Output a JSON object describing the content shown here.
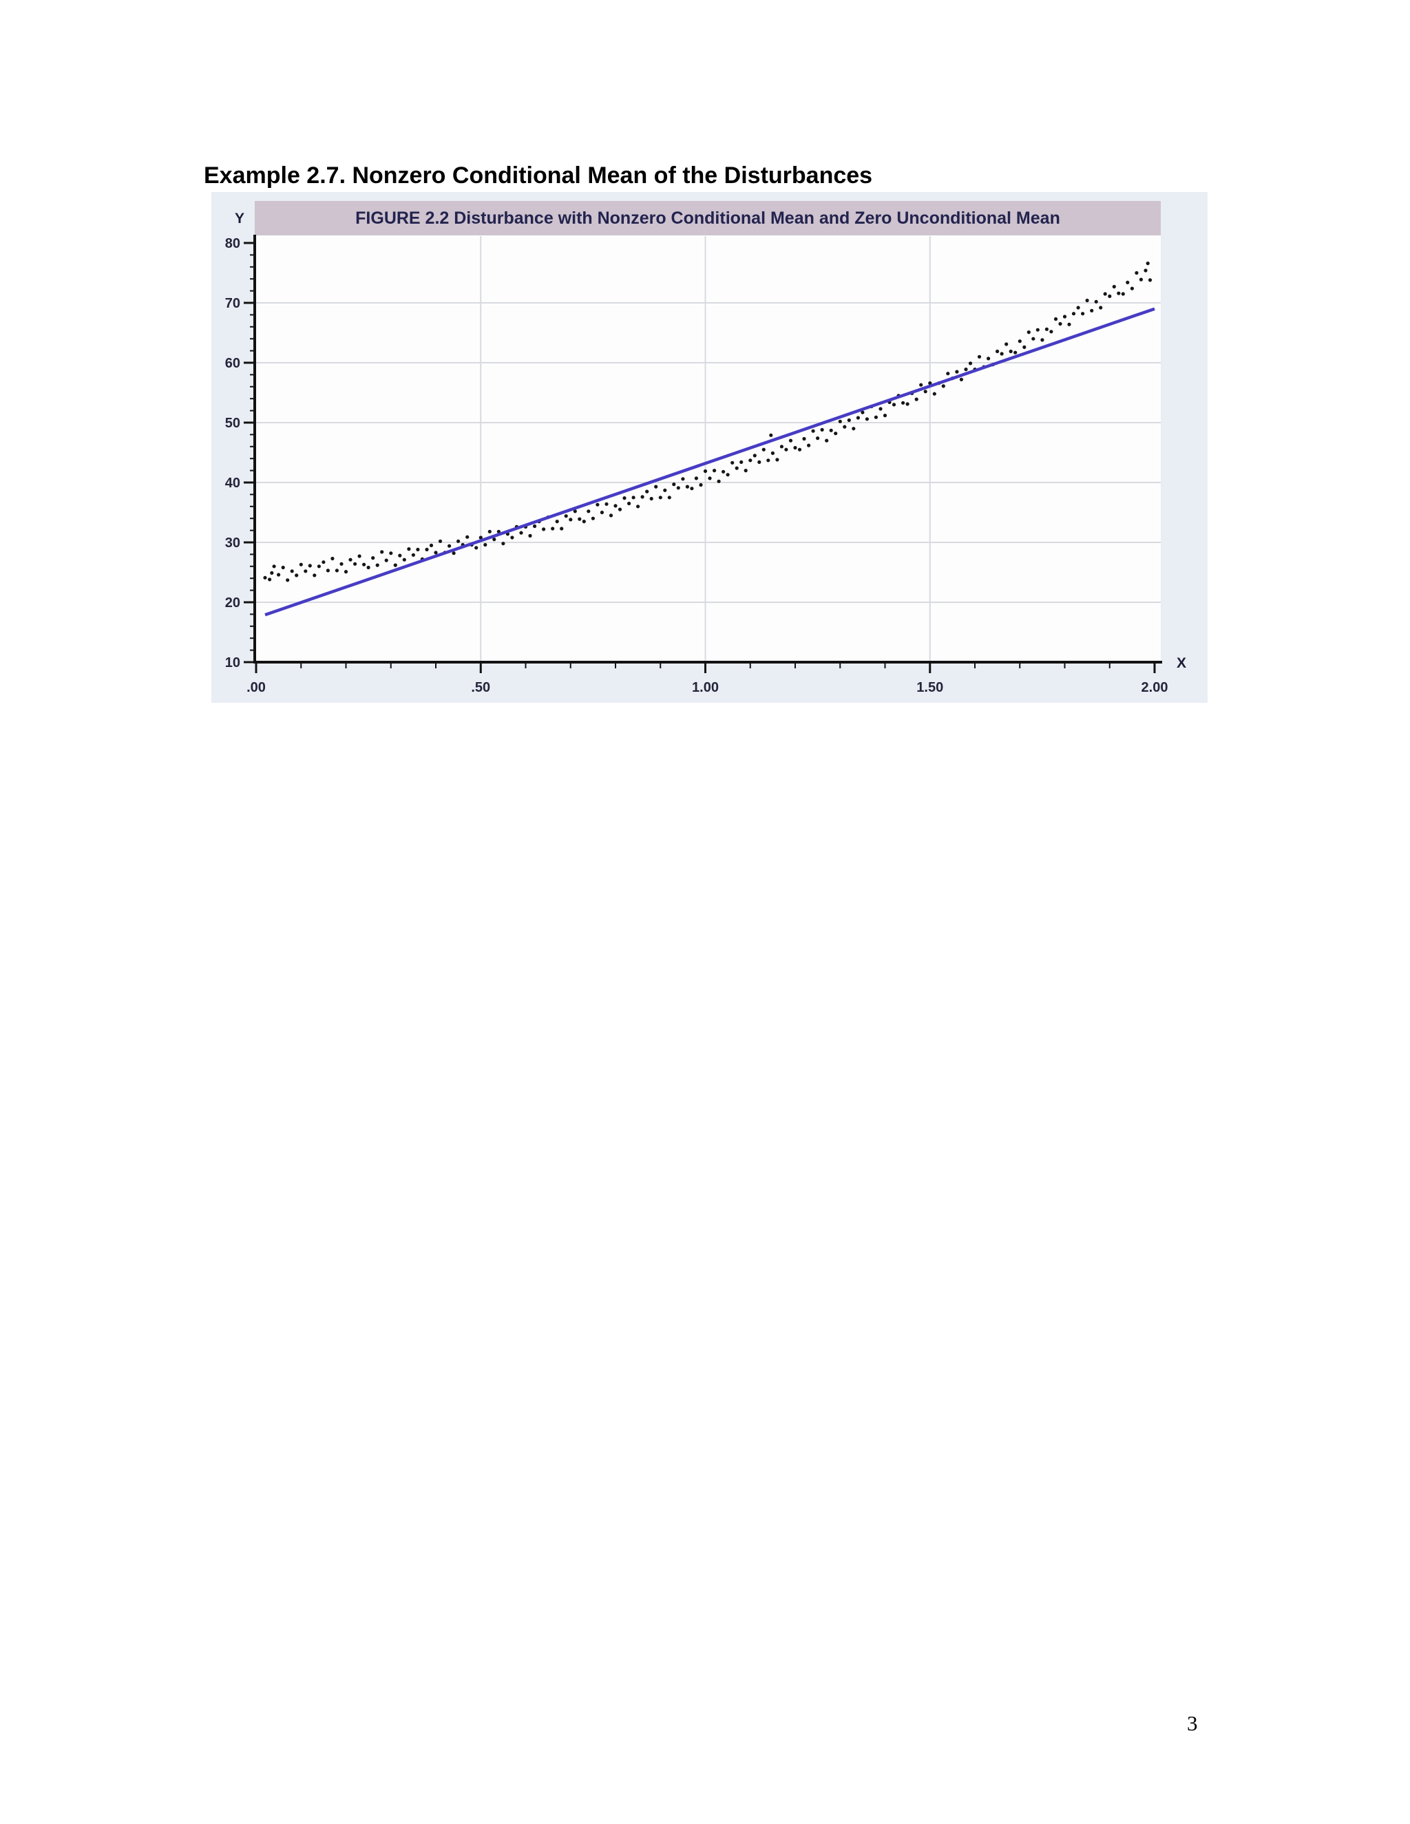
{
  "page": {
    "heading": "Example 2.7. Nonzero Conditional Mean of the Disturbances",
    "page_number": "3"
  },
  "chart_data": {
    "type": "scatter",
    "title": "FIGURE 2.2 Disturbance with Nonzero Conditional Mean and Zero Unconditional Mean",
    "xlabel": "X",
    "ylabel": "Y",
    "xlim": [
      0,
      2.01
    ],
    "ylim": [
      10,
      81
    ],
    "x_tick_values": [
      0,
      0.5,
      1.0,
      1.5,
      2.0
    ],
    "x_tick_labels": [
      ".00",
      ".50",
      "1.00",
      "1.50",
      "2.00"
    ],
    "x_minor_step": 0.1,
    "y_tick_values": [
      10,
      20,
      30,
      40,
      50,
      60,
      70,
      80
    ],
    "y_tick_labels": [
      "10",
      "20",
      "30",
      "40",
      "50",
      "60",
      "70",
      "80"
    ],
    "y_minor_step": 2,
    "grid": true,
    "legend": "none",
    "gridlines": {
      "x": [
        0.5,
        1.0,
        1.5
      ],
      "y": [
        20,
        30,
        40,
        50,
        60,
        70
      ]
    },
    "colors": {
      "figure_bg": "#e9edf4",
      "titlebar_bg": "#cec3ce",
      "title_text": "#23234f",
      "plot_bg": "#fdfdfe",
      "grid": "#d8dae0",
      "axis": "#121212",
      "tick_text": "#24243a",
      "point": "#161616",
      "line": "#473cc4"
    },
    "series": [
      {
        "name": "observations",
        "type": "scatter",
        "color": "#161616",
        "points": [
          [
            0.02,
            24.1
          ],
          [
            0.03,
            23.8
          ],
          [
            0.04,
            26.0
          ],
          [
            0.05,
            24.6
          ],
          [
            0.06,
            25.8
          ],
          [
            0.07,
            23.7
          ],
          [
            0.08,
            25.2
          ],
          [
            0.09,
            24.5
          ],
          [
            0.1,
            26.3
          ],
          [
            0.11,
            25.2
          ],
          [
            0.12,
            26.1
          ],
          [
            0.13,
            24.5
          ],
          [
            0.14,
            26.0
          ],
          [
            0.15,
            26.7
          ],
          [
            0.16,
            25.3
          ],
          [
            0.17,
            27.3
          ],
          [
            0.18,
            25.3
          ],
          [
            0.19,
            26.4
          ],
          [
            0.2,
            25.1
          ],
          [
            0.21,
            27.1
          ],
          [
            0.22,
            26.4
          ],
          [
            0.23,
            27.7
          ],
          [
            0.24,
            26.3
          ],
          [
            0.25,
            25.8
          ],
          [
            0.26,
            27.4
          ],
          [
            0.27,
            26.2
          ],
          [
            0.28,
            28.4
          ],
          [
            0.29,
            27.0
          ],
          [
            0.3,
            28.2
          ],
          [
            0.31,
            26.2
          ],
          [
            0.32,
            27.8
          ],
          [
            0.33,
            27.1
          ],
          [
            0.34,
            28.9
          ],
          [
            0.35,
            27.9
          ],
          [
            0.36,
            28.8
          ],
          [
            0.37,
            27.2
          ],
          [
            0.38,
            28.8
          ],
          [
            0.39,
            29.5
          ],
          [
            0.4,
            28.3
          ],
          [
            0.41,
            30.2
          ],
          [
            0.42,
            28.3
          ],
          [
            0.43,
            29.4
          ],
          [
            0.44,
            28.2
          ],
          [
            0.45,
            30.2
          ],
          [
            0.46,
            29.6
          ],
          [
            0.47,
            30.9
          ],
          [
            0.48,
            29.6
          ],
          [
            0.49,
            29.1
          ],
          [
            0.5,
            30.8
          ],
          [
            0.51,
            29.6
          ],
          [
            0.52,
            31.8
          ],
          [
            0.53,
            30.5
          ],
          [
            0.54,
            31.8
          ],
          [
            0.55,
            29.8
          ],
          [
            0.56,
            31.4
          ],
          [
            0.57,
            30.8
          ],
          [
            0.58,
            32.6
          ],
          [
            0.59,
            31.6
          ],
          [
            0.6,
            32.6
          ],
          [
            0.61,
            31.1
          ],
          [
            0.62,
            32.7
          ],
          [
            0.63,
            33.5
          ],
          [
            0.64,
            32.2
          ],
          [
            0.65,
            34.2
          ],
          [
            0.66,
            32.3
          ],
          [
            0.67,
            33.5
          ],
          [
            0.68,
            32.3
          ],
          [
            0.69,
            34.4
          ],
          [
            0.7,
            33.8
          ],
          [
            0.71,
            35.2
          ],
          [
            0.72,
            33.9
          ],
          [
            0.73,
            33.5
          ],
          [
            0.74,
            35.2
          ],
          [
            0.75,
            34.0
          ],
          [
            0.76,
            36.3
          ],
          [
            0.77,
            35.0
          ],
          [
            0.78,
            36.4
          ],
          [
            0.79,
            34.5
          ],
          [
            0.8,
            36.1
          ],
          [
            0.81,
            35.5
          ],
          [
            0.82,
            37.4
          ],
          [
            0.83,
            36.5
          ],
          [
            0.84,
            37.5
          ],
          [
            0.85,
            36.0
          ],
          [
            0.86,
            37.6
          ],
          [
            0.87,
            38.5
          ],
          [
            0.88,
            37.3
          ],
          [
            0.89,
            39.3
          ],
          [
            0.9,
            37.5
          ],
          [
            0.91,
            38.7
          ],
          [
            0.92,
            37.5
          ],
          [
            0.93,
            39.7
          ],
          [
            0.94,
            39.1
          ],
          [
            0.95,
            40.6
          ],
          [
            0.96,
            39.3
          ],
          [
            0.97,
            39.0
          ],
          [
            0.98,
            40.7
          ],
          [
            0.99,
            39.6
          ],
          [
            1.0,
            41.9
          ],
          [
            1.01,
            40.7
          ],
          [
            1.02,
            42.0
          ],
          [
            1.03,
            40.2
          ],
          [
            1.04,
            41.8
          ],
          [
            1.05,
            41.3
          ],
          [
            1.06,
            43.3
          ],
          [
            1.07,
            42.4
          ],
          [
            1.08,
            43.4
          ],
          [
            1.09,
            42.0
          ],
          [
            1.1,
            43.7
          ],
          [
            1.11,
            44.5
          ],
          [
            1.12,
            43.4
          ],
          [
            1.13,
            45.5
          ],
          [
            1.14,
            43.7
          ],
          [
            1.15,
            44.9
          ],
          [
            1.16,
            43.8
          ],
          [
            1.17,
            46.0
          ],
          [
            1.18,
            45.5
          ],
          [
            1.19,
            47.0
          ],
          [
            1.2,
            45.8
          ],
          [
            1.21,
            45.5
          ],
          [
            1.22,
            47.3
          ],
          [
            1.23,
            46.2
          ],
          [
            1.24,
            48.6
          ],
          [
            1.25,
            47.4
          ],
          [
            1.26,
            48.8
          ],
          [
            1.27,
            47.0
          ],
          [
            1.28,
            48.7
          ],
          [
            1.29,
            48.2
          ],
          [
            1.3,
            50.2
          ],
          [
            1.31,
            49.3
          ],
          [
            1.32,
            50.4
          ],
          [
            1.33,
            49.0
          ],
          [
            1.34,
            50.8
          ],
          [
            1.35,
            51.7
          ],
          [
            1.36,
            50.6
          ],
          [
            1.37,
            52.7
          ],
          [
            1.38,
            50.9
          ],
          [
            1.39,
            52.3
          ],
          [
            1.4,
            51.2
          ],
          [
            1.41,
            53.4
          ],
          [
            1.42,
            53.0
          ],
          [
            1.43,
            54.5
          ],
          [
            1.44,
            53.3
          ],
          [
            1.45,
            53.1
          ],
          [
            1.46,
            54.9
          ],
          [
            1.47,
            53.9
          ],
          [
            1.48,
            56.3
          ],
          [
            1.49,
            55.2
          ],
          [
            1.5,
            56.6
          ],
          [
            1.51,
            54.8
          ],
          [
            1.52,
            56.6
          ],
          [
            1.53,
            56.1
          ],
          [
            1.54,
            58.2
          ],
          [
            1.55,
            57.4
          ],
          [
            1.56,
            58.5
          ],
          [
            1.57,
            57.2
          ],
          [
            1.58,
            58.9
          ],
          [
            1.59,
            59.9
          ],
          [
            1.6,
            58.9
          ],
          [
            1.61,
            61.0
          ],
          [
            1.62,
            59.3
          ],
          [
            1.63,
            60.7
          ],
          [
            1.64,
            59.7
          ],
          [
            1.65,
            61.9
          ],
          [
            1.66,
            61.5
          ],
          [
            1.67,
            63.1
          ],
          [
            1.68,
            61.9
          ],
          [
            1.69,
            61.7
          ],
          [
            1.7,
            63.6
          ],
          [
            1.71,
            62.6
          ],
          [
            1.72,
            65.1
          ],
          [
            1.73,
            64.0
          ],
          [
            1.74,
            65.5
          ],
          [
            1.75,
            63.8
          ],
          [
            1.76,
            65.6
          ],
          [
            1.77,
            65.2
          ],
          [
            1.78,
            67.3
          ],
          [
            1.79,
            66.5
          ],
          [
            1.8,
            67.7
          ],
          [
            1.81,
            66.4
          ],
          [
            1.82,
            68.2
          ],
          [
            1.83,
            69.2
          ],
          [
            1.84,
            68.2
          ],
          [
            1.85,
            70.4
          ],
          [
            1.86,
            68.7
          ],
          [
            1.87,
            70.2
          ],
          [
            1.88,
            69.2
          ],
          [
            1.89,
            71.5
          ],
          [
            1.9,
            71.1
          ],
          [
            1.91,
            72.7
          ],
          [
            1.92,
            71.6
          ],
          [
            1.93,
            71.5
          ],
          [
            1.94,
            73.4
          ],
          [
            1.95,
            72.4
          ],
          [
            1.96,
            75.0
          ],
          [
            1.97,
            73.9
          ],
          [
            1.98,
            75.4
          ],
          [
            1.99,
            73.8
          ],
          [
            1.146,
            47.9
          ],
          [
            1.985,
            76.6
          ],
          [
            0.035,
            24.9
          ]
        ]
      },
      {
        "name": "regression-line",
        "type": "line",
        "color": "#473cc4",
        "points": [
          [
            0.02,
            17.9
          ],
          [
            2.0,
            69.0
          ]
        ]
      }
    ]
  }
}
